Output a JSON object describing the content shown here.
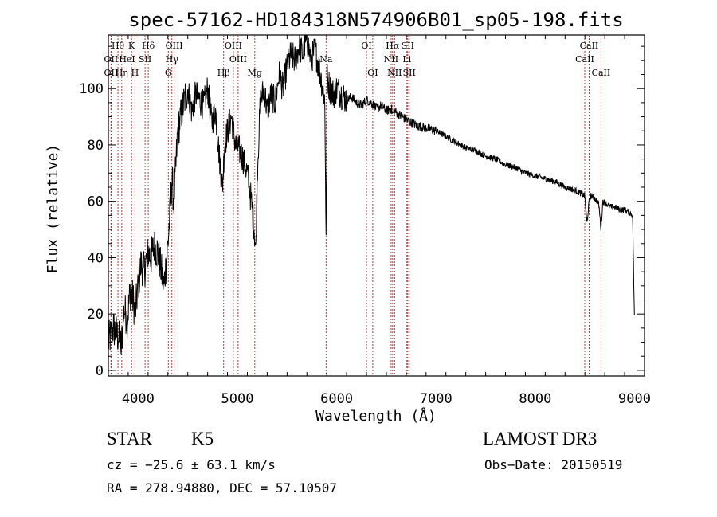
{
  "chart_data": {
    "type": "line",
    "title": "spec-57162-HD184318N574906B01_sp05-198.fits",
    "xlabel": "Wavelength (Å)",
    "ylabel": "Flux (relative)",
    "xlim": [
      3700,
      9100
    ],
    "ylim": [
      -2,
      119
    ],
    "xticks": [
      4000,
      5000,
      6000,
      7000,
      8000,
      9000
    ],
    "xtick_labels": [
      "4000",
      "5000",
      "6000",
      "7000",
      "8000",
      "9000"
    ],
    "yticks": [
      0,
      20,
      40,
      60,
      80,
      100
    ],
    "ytick_labels": [
      "0",
      "20",
      "40",
      "60",
      "80",
      "100"
    ],
    "series": [
      {
        "name": "spectrum",
        "x": [
          3700,
          3750,
          3800,
          3830,
          3860,
          3890,
          3920,
          3950,
          3970,
          4000,
          4030,
          4060,
          4100,
          4130,
          4160,
          4200,
          4230,
          4260,
          4300,
          4320,
          4340,
          4360,
          4380,
          4400,
          4430,
          4460,
          4500,
          4540,
          4580,
          4620,
          4660,
          4700,
          4740,
          4780,
          4820,
          4850,
          4870,
          4900,
          4940,
          4980,
          5020,
          5060,
          5100,
          5140,
          5170,
          5185,
          5200,
          5230,
          5270,
          5300,
          5340,
          5380,
          5420,
          5460,
          5500,
          5540,
          5580,
          5620,
          5660,
          5700,
          5740,
          5780,
          5820,
          5860,
          5880,
          5893,
          5905,
          5930,
          5970,
          6000,
          6050,
          6100,
          6150,
          6200,
          6250,
          6300,
          6350,
          6400,
          6450,
          6500,
          6550,
          6563,
          6580,
          6620,
          6660,
          6700,
          6750,
          6800,
          6900,
          7000,
          7100,
          7200,
          7300,
          7400,
          7500,
          7600,
          7700,
          7800,
          7900,
          8000,
          8100,
          8200,
          8300,
          8400,
          8498,
          8520,
          8542,
          8560,
          8600,
          8640,
          8662,
          8680,
          8720,
          8760,
          8800,
          8850,
          8900,
          8950,
          8980,
          9000
        ],
        "y": [
          10,
          15,
          12,
          8,
          22,
          18,
          28,
          25,
          20,
          30,
          38,
          35,
          42,
          40,
          44,
          42,
          36,
          30,
          45,
          55,
          68,
          60,
          72,
          85,
          90,
          95,
          100,
          92,
          98,
          96,
          94,
          100,
          88,
          92,
          75,
          65,
          80,
          85,
          90,
          80,
          78,
          75,
          70,
          60,
          50,
          42,
          70,
          95,
          100,
          92,
          98,
          95,
          105,
          100,
          108,
          112,
          110,
          115,
          112,
          118,
          110,
          114,
          108,
          100,
          96,
          47,
          104,
          100,
          98,
          100,
          98,
          96,
          97,
          95,
          94,
          96,
          95,
          93,
          94,
          92,
          93,
          91,
          92,
          91,
          90,
          89,
          88,
          87,
          86,
          85,
          83,
          81,
          79,
          78,
          76,
          75,
          73,
          72,
          70,
          69,
          68,
          67,
          65,
          64,
          62,
          52,
          60,
          62,
          61,
          59,
          50,
          60,
          59,
          58,
          58,
          57,
          57,
          56,
          55,
          15
        ]
      }
    ],
    "line_labels": [
      {
        "name": "Hθ",
        "x": 3797,
        "row": 1
      },
      {
        "name": "OII",
        "x": 3727,
        "row": 2
      },
      {
        "name": "OII",
        "x": 3727,
        "row": 3
      },
      {
        "name": "HeI",
        "x": 3889,
        "row": 2
      },
      {
        "name": "Hη",
        "x": 3835,
        "row": 3
      },
      {
        "name": "K",
        "x": 3934,
        "row": 1
      },
      {
        "name": "SII",
        "x": 4070,
        "row": 2
      },
      {
        "name": "H",
        "x": 3968,
        "row": 3
      },
      {
        "name": "Hδ",
        "x": 4102,
        "row": 1
      },
      {
        "name": "OIII",
        "x": 4363,
        "row": 1
      },
      {
        "name": "Hγ",
        "x": 4340,
        "row": 2
      },
      {
        "name": "G",
        "x": 4304,
        "row": 3
      },
      {
        "name": "Hβ",
        "x": 4861,
        "row": 3
      },
      {
        "name": "OIII",
        "x": 4959,
        "row": 1
      },
      {
        "name": "OIII",
        "x": 5007,
        "row": 2
      },
      {
        "name": "Mg",
        "x": 5175,
        "row": 3
      },
      {
        "name": "Na",
        "x": 5893,
        "row": 2
      },
      {
        "name": "OI",
        "x": 6300,
        "row": 1
      },
      {
        "name": "OI",
        "x": 6363,
        "row": 3
      },
      {
        "name": "Hα",
        "x": 6563,
        "row": 1
      },
      {
        "name": "NII",
        "x": 6548,
        "row": 2
      },
      {
        "name": "NII",
        "x": 6583,
        "row": 3
      },
      {
        "name": "SII",
        "x": 6716,
        "row": 1
      },
      {
        "name": "Li",
        "x": 6707,
        "row": 2
      },
      {
        "name": "SII",
        "x": 6731,
        "row": 3
      },
      {
        "name": "CaII",
        "x": 8542,
        "row": 1
      },
      {
        "name": "CaII",
        "x": 8498,
        "row": 2
      },
      {
        "name": "CaII",
        "x": 8662,
        "row": 3
      }
    ],
    "line_color": "#a52a2a",
    "spectrum_color": "#000000"
  },
  "info": {
    "object_type": "STAR",
    "subclass": "K5",
    "survey": "LAMOST DR3",
    "cz": "cz = −25.6 ± 63.1 km/s",
    "obs_date": "Obs−Date: 20150519",
    "coords": "RA = 278.94880, DEC =  57.10507"
  }
}
